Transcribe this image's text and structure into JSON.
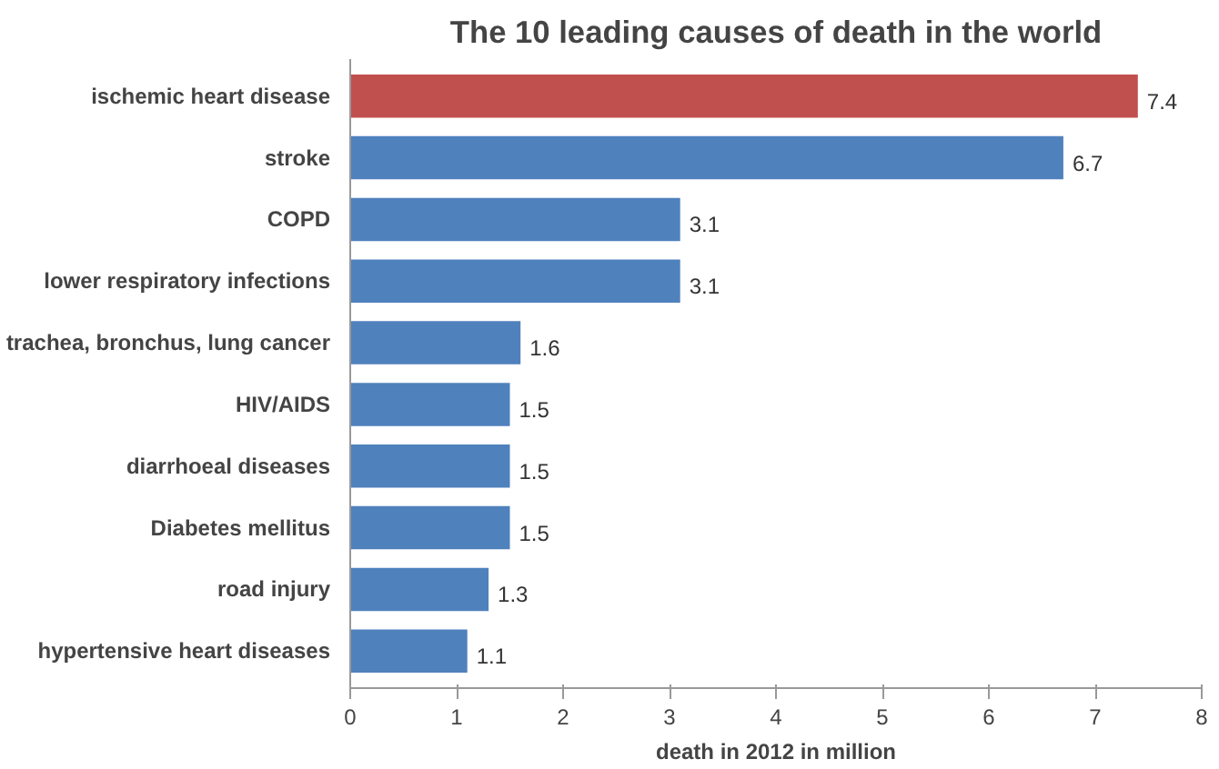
{
  "chart_data": {
    "type": "bar",
    "orientation": "horizontal",
    "title": "The 10 leading causes of death in the world",
    "xlabel": "death in 2012 in million",
    "categories": [
      "ischemic heart disease",
      "stroke",
      "COPD",
      "lower respiratory infections",
      "trachea, bronchus, lung cancer",
      "HIV/AIDS",
      "diarrhoeal diseases",
      "Diabetes mellitus",
      "road injury",
      "hypertensive heart diseases"
    ],
    "values": [
      7.4,
      6.7,
      3.1,
      3.1,
      1.6,
      1.5,
      1.5,
      1.5,
      1.3,
      1.1
    ],
    "colors": [
      "#c0504d",
      "#4f81bd",
      "#4f81bd",
      "#4f81bd",
      "#4f81bd",
      "#4f81bd",
      "#4f81bd",
      "#4f81bd",
      "#4f81bd",
      "#4f81bd"
    ],
    "xlim": [
      0,
      8
    ],
    "xticks": [
      0,
      1,
      2,
      3,
      4,
      5,
      6,
      7,
      8
    ],
    "data_labels": true,
    "grid": false
  }
}
